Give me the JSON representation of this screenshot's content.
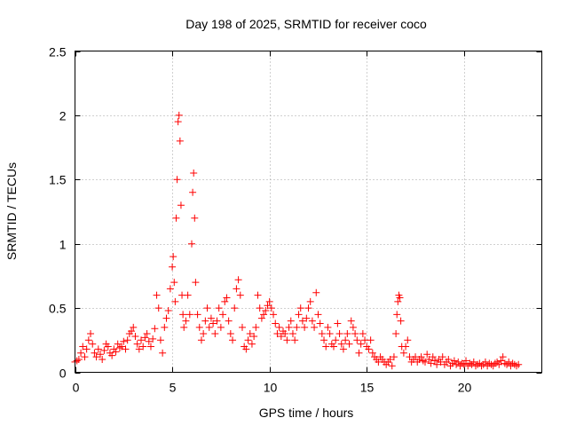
{
  "chart_data": {
    "type": "scatter",
    "title": "Day 198 of 2025, SRMTID for receiver coco",
    "xlabel": "GPS time / hours",
    "ylabel": "SRMTID / TECUs",
    "xlim": [
      0,
      24
    ],
    "ylim": [
      0,
      2.5
    ],
    "xticks": [
      0,
      5,
      10,
      15,
      20
    ],
    "xtick_labels": [
      "0",
      "5",
      "10",
      "15",
      "20"
    ],
    "yticks": [
      0,
      0.5,
      1,
      1.5,
      2,
      2.5
    ],
    "ytick_labels": [
      "0",
      "0.5",
      "1",
      "1.5",
      "2",
      "2.5"
    ],
    "grid": true,
    "marker": "+",
    "color": "#ff0000",
    "series": [
      {
        "name": "coco",
        "points": [
          [
            0.0,
            0.08
          ],
          [
            0.1,
            0.09
          ],
          [
            0.2,
            0.1
          ],
          [
            0.3,
            0.15
          ],
          [
            0.4,
            0.2
          ],
          [
            0.5,
            0.12
          ],
          [
            0.6,
            0.18
          ],
          [
            0.7,
            0.25
          ],
          [
            0.8,
            0.3
          ],
          [
            0.9,
            0.22
          ],
          [
            1.0,
            0.15
          ],
          [
            1.1,
            0.12
          ],
          [
            1.2,
            0.18
          ],
          [
            1.3,
            0.14
          ],
          [
            1.4,
            0.1
          ],
          [
            1.5,
            0.17
          ],
          [
            1.6,
            0.22
          ],
          [
            1.7,
            0.2
          ],
          [
            1.8,
            0.15
          ],
          [
            1.9,
            0.13
          ],
          [
            2.0,
            0.18
          ],
          [
            2.1,
            0.16
          ],
          [
            2.2,
            0.22
          ],
          [
            2.3,
            0.19
          ],
          [
            2.4,
            0.2
          ],
          [
            2.5,
            0.24
          ],
          [
            2.6,
            0.18
          ],
          [
            2.7,
            0.25
          ],
          [
            2.8,
            0.3
          ],
          [
            2.9,
            0.32
          ],
          [
            3.0,
            0.35
          ],
          [
            3.1,
            0.28
          ],
          [
            3.2,
            0.22
          ],
          [
            3.3,
            0.18
          ],
          [
            3.4,
            0.25
          ],
          [
            3.5,
            0.2
          ],
          [
            3.6,
            0.27
          ],
          [
            3.7,
            0.3
          ],
          [
            3.8,
            0.24
          ],
          [
            3.9,
            0.2
          ],
          [
            4.0,
            0.26
          ],
          [
            4.1,
            0.34
          ],
          [
            4.2,
            0.6
          ],
          [
            4.3,
            0.5
          ],
          [
            4.4,
            0.25
          ],
          [
            4.5,
            0.15
          ],
          [
            4.6,
            0.35
          ],
          [
            4.7,
            0.42
          ],
          [
            4.8,
            0.48
          ],
          [
            4.9,
            0.65
          ],
          [
            5.0,
            0.82
          ],
          [
            5.05,
            0.9
          ],
          [
            5.1,
            0.7
          ],
          [
            5.15,
            0.55
          ],
          [
            5.2,
            1.2
          ],
          [
            5.25,
            1.5
          ],
          [
            5.3,
            1.95
          ],
          [
            5.35,
            2.0
          ],
          [
            5.4,
            1.8
          ],
          [
            5.45,
            1.3
          ],
          [
            5.5,
            0.6
          ],
          [
            5.55,
            0.45
          ],
          [
            5.6,
            0.35
          ],
          [
            5.7,
            0.4
          ],
          [
            5.8,
            0.6
          ],
          [
            5.9,
            0.45
          ],
          [
            6.0,
            1.0
          ],
          [
            6.05,
            1.4
          ],
          [
            6.1,
            1.55
          ],
          [
            6.15,
            1.2
          ],
          [
            6.2,
            0.7
          ],
          [
            6.3,
            0.45
          ],
          [
            6.4,
            0.35
          ],
          [
            6.5,
            0.25
          ],
          [
            6.6,
            0.3
          ],
          [
            6.7,
            0.4
          ],
          [
            6.8,
            0.5
          ],
          [
            6.9,
            0.35
          ],
          [
            7.0,
            0.42
          ],
          [
            7.1,
            0.38
          ],
          [
            7.2,
            0.3
          ],
          [
            7.3,
            0.4
          ],
          [
            7.4,
            0.5
          ],
          [
            7.5,
            0.35
          ],
          [
            7.6,
            0.45
          ],
          [
            7.7,
            0.55
          ],
          [
            7.8,
            0.58
          ],
          [
            7.9,
            0.4
          ],
          [
            8.0,
            0.3
          ],
          [
            8.1,
            0.25
          ],
          [
            8.2,
            0.5
          ],
          [
            8.3,
            0.65
          ],
          [
            8.4,
            0.72
          ],
          [
            8.5,
            0.6
          ],
          [
            8.6,
            0.35
          ],
          [
            8.7,
            0.2
          ],
          [
            8.8,
            0.18
          ],
          [
            8.9,
            0.25
          ],
          [
            9.0,
            0.3
          ],
          [
            9.1,
            0.22
          ],
          [
            9.2,
            0.28
          ],
          [
            9.3,
            0.35
          ],
          [
            9.4,
            0.6
          ],
          [
            9.5,
            0.5
          ],
          [
            9.6,
            0.42
          ],
          [
            9.7,
            0.45
          ],
          [
            9.8,
            0.48
          ],
          [
            9.9,
            0.52
          ],
          [
            10.0,
            0.55
          ],
          [
            10.1,
            0.5
          ],
          [
            10.2,
            0.45
          ],
          [
            10.3,
            0.38
          ],
          [
            10.4,
            0.3
          ],
          [
            10.5,
            0.35
          ],
          [
            10.6,
            0.28
          ],
          [
            10.7,
            0.32
          ],
          [
            10.8,
            0.3
          ],
          [
            10.9,
            0.25
          ],
          [
            11.0,
            0.35
          ],
          [
            11.1,
            0.4
          ],
          [
            11.2,
            0.3
          ],
          [
            11.3,
            0.25
          ],
          [
            11.4,
            0.35
          ],
          [
            11.5,
            0.45
          ],
          [
            11.6,
            0.5
          ],
          [
            11.7,
            0.4
          ],
          [
            11.8,
            0.35
          ],
          [
            11.9,
            0.42
          ],
          [
            12.0,
            0.5
          ],
          [
            12.1,
            0.55
          ],
          [
            12.2,
            0.4
          ],
          [
            12.3,
            0.35
          ],
          [
            12.4,
            0.62
          ],
          [
            12.5,
            0.45
          ],
          [
            12.6,
            0.38
          ],
          [
            12.7,
            0.3
          ],
          [
            12.8,
            0.25
          ],
          [
            12.9,
            0.2
          ],
          [
            13.0,
            0.35
          ],
          [
            13.1,
            0.3
          ],
          [
            13.2,
            0.22
          ],
          [
            13.3,
            0.2
          ],
          [
            13.4,
            0.25
          ],
          [
            13.5,
            0.38
          ],
          [
            13.6,
            0.3
          ],
          [
            13.7,
            0.22
          ],
          [
            13.8,
            0.18
          ],
          [
            13.9,
            0.25
          ],
          [
            14.0,
            0.3
          ],
          [
            14.1,
            0.22
          ],
          [
            14.2,
            0.4
          ],
          [
            14.3,
            0.35
          ],
          [
            14.4,
            0.3
          ],
          [
            14.5,
            0.25
          ],
          [
            14.6,
            0.15
          ],
          [
            14.7,
            0.22
          ],
          [
            14.8,
            0.3
          ],
          [
            14.9,
            0.25
          ],
          [
            15.0,
            0.2
          ],
          [
            15.1,
            0.18
          ],
          [
            15.2,
            0.25
          ],
          [
            15.3,
            0.15
          ],
          [
            15.4,
            0.12
          ],
          [
            15.5,
            0.1
          ],
          [
            15.6,
            0.08
          ],
          [
            15.7,
            0.12
          ],
          [
            15.8,
            0.1
          ],
          [
            15.9,
            0.08
          ],
          [
            16.0,
            0.06
          ],
          [
            16.1,
            0.08
          ],
          [
            16.2,
            0.1
          ],
          [
            16.3,
            0.05
          ],
          [
            16.4,
            0.12
          ],
          [
            16.5,
            0.3
          ],
          [
            16.55,
            0.45
          ],
          [
            16.6,
            0.55
          ],
          [
            16.65,
            0.6
          ],
          [
            16.7,
            0.58
          ],
          [
            16.75,
            0.4
          ],
          [
            16.8,
            0.2
          ],
          [
            16.9,
            0.15
          ],
          [
            17.0,
            0.2
          ],
          [
            17.1,
            0.25
          ],
          [
            17.2,
            0.12
          ],
          [
            17.3,
            0.08
          ],
          [
            17.4,
            0.1
          ],
          [
            17.5,
            0.12
          ],
          [
            17.6,
            0.08
          ],
          [
            17.7,
            0.1
          ],
          [
            17.8,
            0.12
          ],
          [
            17.9,
            0.09
          ],
          [
            18.0,
            0.08
          ],
          [
            18.1,
            0.14
          ],
          [
            18.2,
            0.1
          ],
          [
            18.3,
            0.07
          ],
          [
            18.4,
            0.12
          ],
          [
            18.5,
            0.09
          ],
          [
            18.6,
            0.06
          ],
          [
            18.7,
            0.1
          ],
          [
            18.8,
            0.08
          ],
          [
            18.9,
            0.12
          ],
          [
            19.0,
            0.06
          ],
          [
            19.1,
            0.08
          ],
          [
            19.2,
            0.1
          ],
          [
            19.3,
            0.05
          ],
          [
            19.4,
            0.07
          ],
          [
            19.5,
            0.09
          ],
          [
            19.6,
            0.06
          ],
          [
            19.7,
            0.08
          ],
          [
            19.8,
            0.05
          ],
          [
            19.9,
            0.07
          ],
          [
            20.0,
            0.06
          ],
          [
            20.1,
            0.09
          ],
          [
            20.2,
            0.05
          ],
          [
            20.3,
            0.07
          ],
          [
            20.4,
            0.06
          ],
          [
            20.5,
            0.08
          ],
          [
            20.6,
            0.05
          ],
          [
            20.7,
            0.06
          ],
          [
            20.8,
            0.07
          ],
          [
            20.9,
            0.05
          ],
          [
            21.0,
            0.06
          ],
          [
            21.1,
            0.08
          ],
          [
            21.2,
            0.05
          ],
          [
            21.3,
            0.07
          ],
          [
            21.4,
            0.06
          ],
          [
            21.5,
            0.05
          ],
          [
            21.6,
            0.07
          ],
          [
            21.7,
            0.08
          ],
          [
            21.8,
            0.06
          ],
          [
            21.9,
            0.09
          ],
          [
            22.0,
            0.12
          ],
          [
            22.1,
            0.07
          ],
          [
            22.2,
            0.06
          ],
          [
            22.3,
            0.08
          ],
          [
            22.4,
            0.05
          ],
          [
            22.5,
            0.07
          ],
          [
            22.6,
            0.06
          ],
          [
            22.7,
            0.05
          ],
          [
            22.8,
            0.06
          ]
        ]
      }
    ]
  }
}
